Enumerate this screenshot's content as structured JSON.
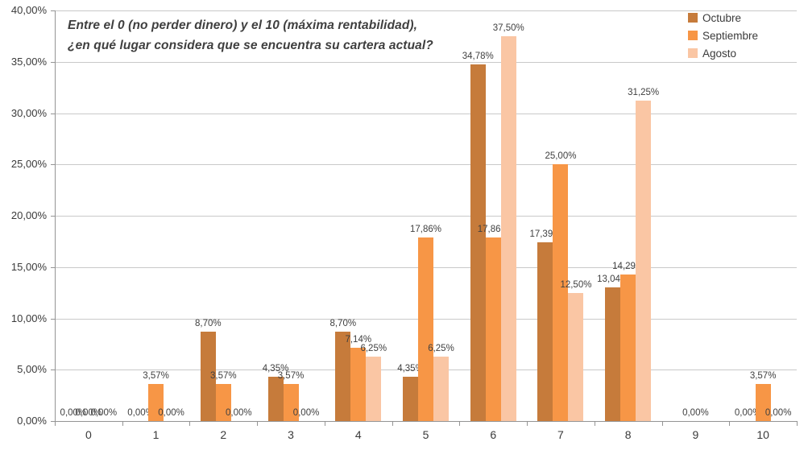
{
  "chart_data": {
    "type": "bar",
    "title_lines": [
      "Entre el 0 (no perder dinero) y el 10 (máxima rentabilidad),",
      "¿en qué lugar considera que se encuentra su cartera actual?"
    ],
    "categories": [
      "0",
      "1",
      "2",
      "3",
      "4",
      "5",
      "6",
      "7",
      "8",
      "9",
      "10"
    ],
    "y_axis": {
      "min": 0,
      "max": 40,
      "step": 5,
      "tick_labels": [
        "0,00%",
        "5,00%",
        "10,00%",
        "15,00%",
        "20,00%",
        "25,00%",
        "30,00%",
        "35,00%",
        "40,00%"
      ]
    },
    "grid": true,
    "legend_position": "top-right",
    "series": [
      {
        "name": "Octubre",
        "color": "#C67B3B",
        "values": [
          0,
          0,
          8.7,
          4.35,
          8.7,
          4.35,
          34.78,
          17.39,
          13.04,
          0,
          0
        ],
        "labels": [
          "0,00%",
          "0,00%",
          "8,70%",
          "4,35%",
          "8,70%",
          "4,35%",
          "34,78%",
          "17,39%",
          "13,04%",
          null,
          "0,00%"
        ]
      },
      {
        "name": "Septiembre",
        "color": "#F79646",
        "values": [
          0,
          3.57,
          3.57,
          3.57,
          7.14,
          17.86,
          17.86,
          25.0,
          14.29,
          0,
          3.57
        ],
        "labels": [
          "0,00%",
          "3,57%",
          "3,57%",
          "3,57%",
          "7,14%",
          "17,86%",
          "17,86%",
          "25,00%",
          "14,29%",
          "0,00%",
          "3,57%"
        ]
      },
      {
        "name": "Agosto",
        "color": "#FAC6A4",
        "values": [
          0,
          0,
          0,
          0,
          6.25,
          6.25,
          37.5,
          12.5,
          31.25,
          0,
          0
        ],
        "labels": [
          "0,00%",
          "0,00%",
          "0,00%",
          "0,00%",
          "6,25%",
          "6,25%",
          "37,50%",
          "12,50%",
          "31,25%",
          null,
          "0,00%"
        ]
      }
    ]
  },
  "colors": {
    "grid": "#C9C9C9",
    "axis": "#949494",
    "text": "#3F3F3F"
  }
}
